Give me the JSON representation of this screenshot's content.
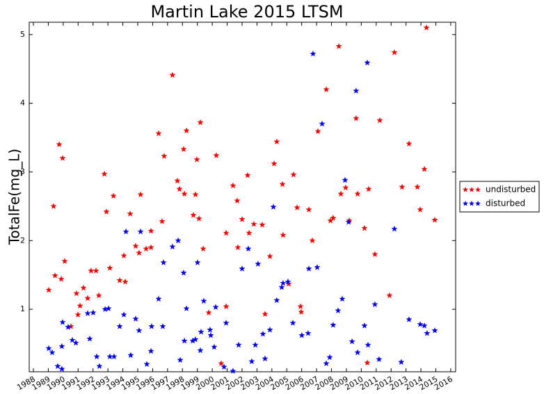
{
  "chart_data": {
    "type": "scatter",
    "title": "Martin Lake 2015 LTSM",
    "y_label": "TotalFe(mg_L)",
    "xlim": [
      1987.72,
      2016.33
    ],
    "xticks": [
      1988,
      1989,
      1990,
      1991,
      1992,
      1993,
      1994,
      1995,
      1996,
      1997,
      1998,
      1999,
      2000,
      2001,
      2002,
      2003,
      2004,
      2005,
      2006,
      2007,
      2008,
      2009,
      2010,
      2011,
      2012,
      2013,
      2014,
      2015,
      2016
    ],
    "ylim": [
      0.09,
      5.18
    ],
    "yticks": [
      1,
      2,
      3,
      4,
      5
    ],
    "grid": false,
    "legend": "right",
    "series": [
      {
        "name": "undisturbed",
        "color": "#ff0000",
        "x": [
          1989.03,
          1989.35,
          1989.45,
          1989.73,
          1989.87,
          1989.96,
          1990.1,
          1990.52,
          1990.89,
          1990.99,
          1991.13,
          1991.36,
          1991.64,
          1991.87,
          1992.2,
          1992.39,
          1992.76,
          1992.9,
          1993.13,
          1993.37,
          1993.79,
          1994.07,
          1994.16,
          1994.49,
          1994.86,
          1995.09,
          1995.19,
          1995.56,
          1995.89,
          1995.89,
          1996.4,
          1996.63,
          1996.77,
          1997.33,
          1997.66,
          1997.8,
          1998.08,
          1998.13,
          1998.27,
          1998.73,
          1998.87,
          1998.97,
          1999.11,
          1999.2,
          1999.39,
          1999.76,
          2000.27,
          2000.6,
          2000.93,
          2000.93,
          2001.39,
          2001.67,
          2001.72,
          2002.0,
          2002.37,
          2002.47,
          2002.79,
          2003.35,
          2003.54,
          2003.87,
          2004.15,
          2004.33,
          2004.71,
          2004.75,
          2005.13,
          2005.45,
          2005.69,
          2005.92,
          2005.97,
          2006.48,
          2006.71,
          2007.09,
          2007.65,
          2007.93,
          2008.11,
          2008.49,
          2008.63,
          2008.95,
          2009.19,
          2009.65,
          2009.75,
          2010.21,
          2010.4,
          2010.49,
          2010.91,
          2011.24,
          2011.89,
          2012.22,
          2012.73,
          2013.2,
          2013.76,
          2013.95,
          2014.23,
          2014.37,
          2014.93
        ],
        "values": [
          1.28,
          2.5,
          1.49,
          3.4,
          1.44,
          3.2,
          1.7,
          0.75,
          1.23,
          0.92,
          1.05,
          1.31,
          1.16,
          1.56,
          1.56,
          1.2,
          2.97,
          2.42,
          1.6,
          2.65,
          1.42,
          1.78,
          1.4,
          2.39,
          1.92,
          1.82,
          2.67,
          1.88,
          1.9,
          2.14,
          3.56,
          2.28,
          3.23,
          4.41,
          2.87,
          2.75,
          3.33,
          2.68,
          3.6,
          2.37,
          2.67,
          3.18,
          2.32,
          3.72,
          1.88,
          0.95,
          3.24,
          0.21,
          1.04,
          2.11,
          2.8,
          2.58,
          1.9,
          2.31,
          2.95,
          2.11,
          2.24,
          2.23,
          0.93,
          1.77,
          3.12,
          3.44,
          2.82,
          2.08,
          1.37,
          2.96,
          2.48,
          1.04,
          0.96,
          2.45,
          2.0,
          3.59,
          4.2,
          2.29,
          2.33,
          4.83,
          2.68,
          2.77,
          2.29,
          3.78,
          2.68,
          2.18,
          0.22,
          2.75,
          1.8,
          3.75,
          1.2,
          4.74,
          2.78,
          3.41,
          2.78,
          2.45,
          3.04,
          5.1,
          2.3
        ]
      },
      {
        "name": "disturbed",
        "color": "#0000ff",
        "x": [
          1989.03,
          1989.26,
          1989.63,
          1989.91,
          1989.91,
          1989.96,
          1990.33,
          1990.61,
          1990.85,
          1991.64,
          1991.78,
          1992.01,
          1992.25,
          1992.43,
          1992.81,
          1993.04,
          1993.13,
          1993.41,
          1993.79,
          1994.07,
          1994.21,
          1994.53,
          1994.86,
          1995.09,
          1995.19,
          1995.61,
          1995.89,
          1995.93,
          1996.4,
          1996.68,
          1996.73,
          1997.33,
          1997.71,
          1997.85,
          1998.08,
          1998.13,
          1998.27,
          1998.69,
          1998.87,
          1999.01,
          1999.2,
          1999.25,
          1999.43,
          1999.85,
          1999.9,
          2000.13,
          2000.23,
          2000.79,
          2000.93,
          2001.39,
          2001.77,
          2002.0,
          2002.42,
          2002.65,
          2002.89,
          2003.07,
          2003.4,
          2003.54,
          2003.87,
          2004.1,
          2004.33,
          2004.66,
          2004.75,
          2005.08,
          2005.41,
          2006.01,
          2006.43,
          2006.48,
          2006.76,
          2007.04,
          2007.37,
          2007.65,
          2007.88,
          2008.11,
          2008.44,
          2008.72,
          2008.91,
          2009.15,
          2009.38,
          2009.65,
          2009.75,
          2010.21,
          2010.4,
          2010.45,
          2010.91,
          2011.19,
          2012.22,
          2012.68,
          2013.2,
          2013.95,
          2014.23,
          2014.41,
          2014.93
        ],
        "values": [
          0.43,
          0.37,
          0.17,
          0.46,
          0.13,
          0.81,
          0.74,
          0.55,
          0.51,
          0.94,
          0.57,
          0.95,
          0.31,
          0.17,
          1.0,
          1.01,
          0.31,
          0.31,
          0.75,
          0.92,
          2.13,
          0.33,
          0.86,
          0.69,
          2.13,
          0.2,
          0.39,
          0.75,
          1.15,
          0.75,
          1.68,
          1.91,
          2.0,
          0.26,
          1.53,
          0.54,
          1.01,
          0.54,
          0.56,
          1.68,
          0.4,
          0.67,
          1.12,
          0.7,
          0.62,
          0.45,
          1.03,
          0.16,
          0.8,
          0.1,
          0.48,
          1.59,
          1.88,
          0.24,
          0.48,
          1.66,
          0.64,
          0.28,
          0.7,
          2.49,
          1.13,
          1.32,
          1.38,
          1.4,
          0.8,
          0.62,
          0.65,
          1.59,
          4.72,
          1.61,
          3.7,
          0.21,
          0.3,
          0.77,
          0.98,
          1.15,
          2.88,
          2.27,
          0.53,
          4.18,
          0.37,
          0.76,
          4.59,
          0.48,
          1.07,
          0.27,
          2.17,
          0.23,
          0.85,
          0.78,
          0.76,
          0.65,
          0.69
        ]
      }
    ]
  }
}
